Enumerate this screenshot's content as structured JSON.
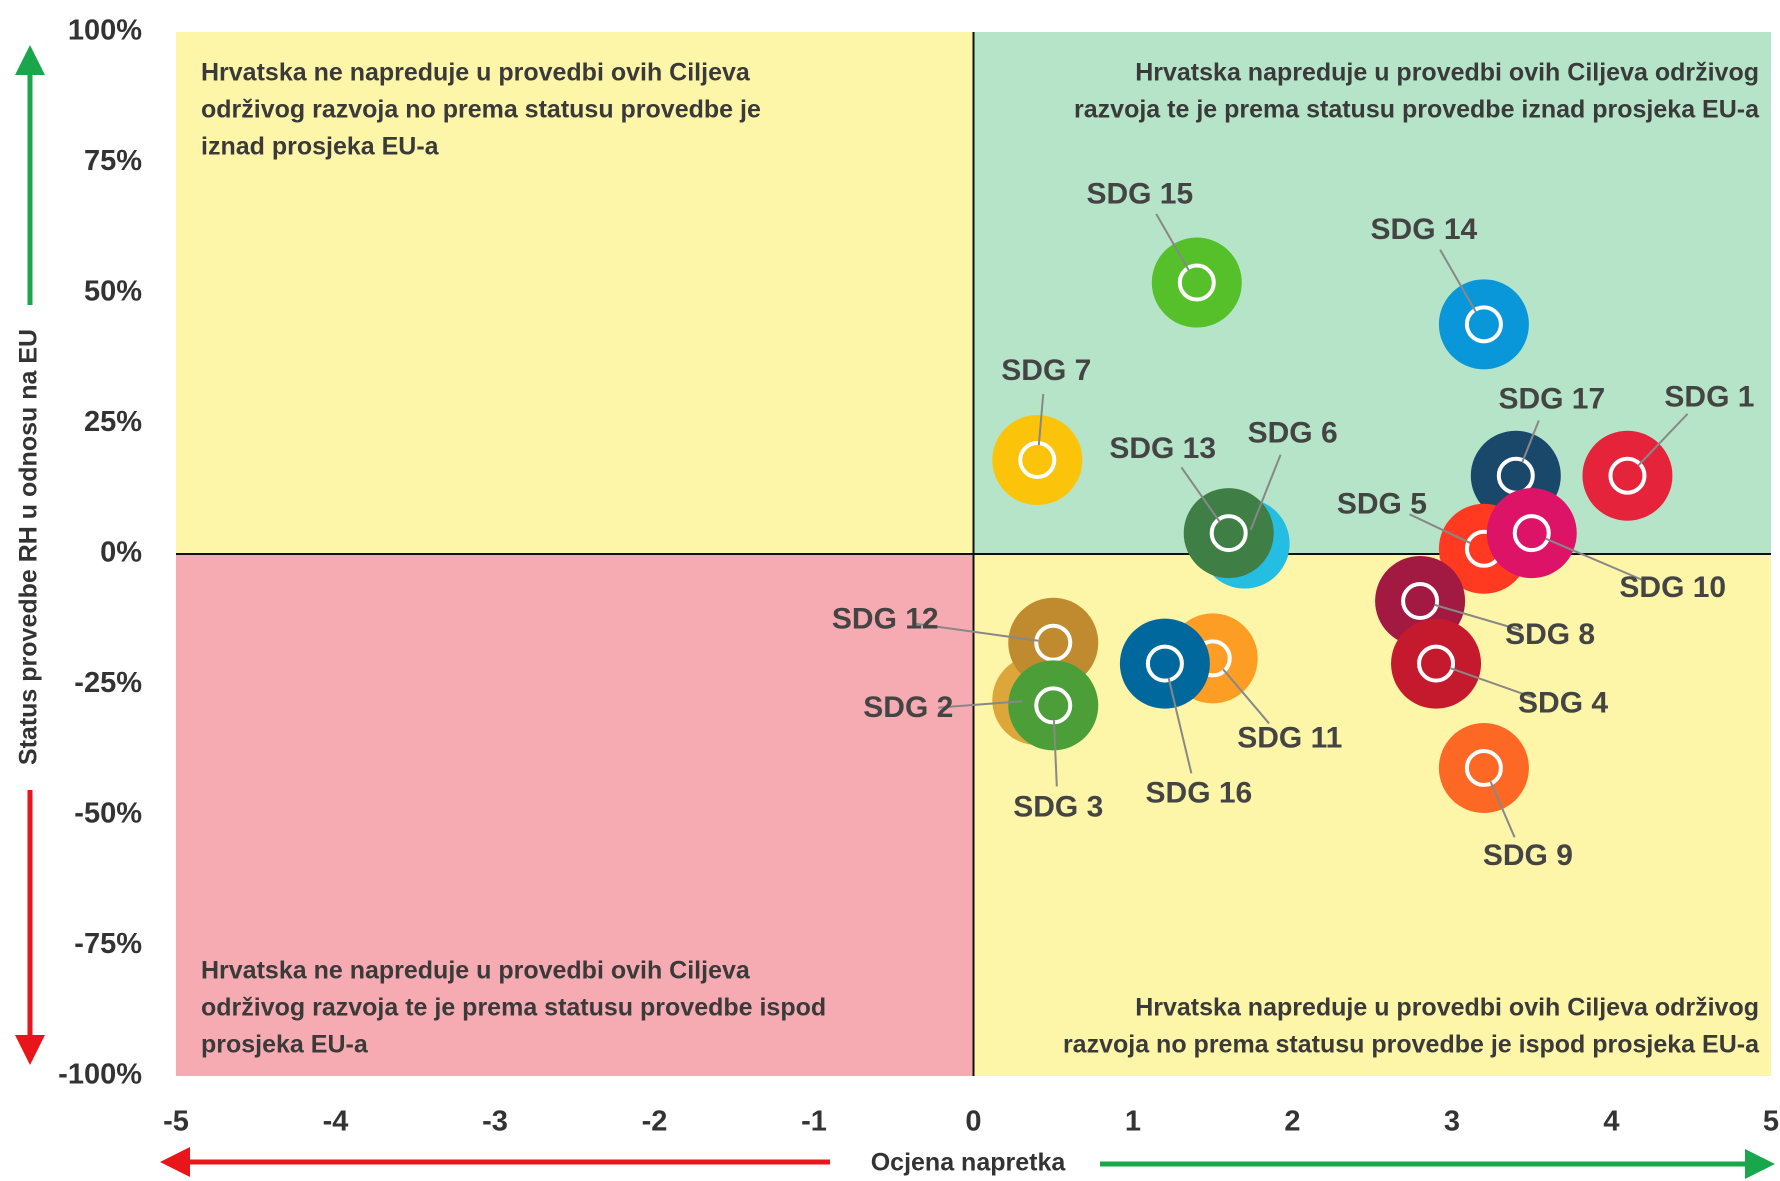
{
  "chart_data": {
    "type": "scatter",
    "xlabel": "Ocjena napretka",
    "ylabel": "Status provedbe RH u odnosu na EU",
    "xlim": [
      -5,
      5
    ],
    "xticks": [
      -5,
      -4,
      -3,
      -2,
      -1,
      0,
      1,
      2,
      3,
      4,
      5
    ],
    "ylim": [
      -100,
      100
    ],
    "yticks": [
      {
        "value": -100,
        "label": "-100%"
      },
      {
        "value": -75,
        "label": "-75%"
      },
      {
        "value": -50,
        "label": "-50%"
      },
      {
        "value": -25,
        "label": "-25%"
      },
      {
        "value": 0,
        "label": "0%"
      },
      {
        "value": 25,
        "label": "25%"
      },
      {
        "value": 50,
        "label": "50%"
      },
      {
        "value": 75,
        "label": "75%"
      },
      {
        "value": 100,
        "label": "100%"
      }
    ],
    "quadrants": [
      {
        "position": "top-left",
        "color": "#fdf5a8",
        "lines": [
          "Hrvatska ne napreduje u provedbi ovih Ciljeva",
          "održivog razvoja no prema statusu provedbe je",
          "iznad prosjeka EU-a"
        ]
      },
      {
        "position": "top-right",
        "color": "#b5e4c9",
        "lines": [
          "Hrvatska napreduje u provedbi ovih Ciljeva održivog",
          "razvoja te je prema statusu provedbe iznad prosjeka EU-a"
        ]
      },
      {
        "position": "bottom-left",
        "color": "#f5abb1",
        "lines": [
          "Hrvatska ne napreduje u provedbi ovih Ciljeva",
          "održivog razvoja te je prema statusu provedbe ispod",
          "prosjeka EU-a"
        ]
      },
      {
        "position": "bottom-right",
        "color": "#fdf5a8",
        "lines": [
          "Hrvatska napreduje u provedbi ovih Ciljeva održivog",
          "razvoja no prema statusu provedbe je ispod prosjeka EU-a"
        ]
      }
    ],
    "points": [
      {
        "name": "SDG 15",
        "x": 1.4,
        "y": 52,
        "color": "#56c02b"
      },
      {
        "name": "SDG 14",
        "x": 3.2,
        "y": 44,
        "color": "#0a97d9"
      },
      {
        "name": "SDG 7",
        "x": 0.4,
        "y": 18,
        "color": "#fcc30b"
      },
      {
        "name": "SDG 17",
        "x": 3.4,
        "y": 15,
        "color": "#19486a"
      },
      {
        "name": "SDG 1",
        "x": 4.1,
        "y": 15,
        "color": "#e5243b"
      },
      {
        "name": "SDG 6",
        "x": 1.7,
        "y": 2,
        "color": "#26bde2"
      },
      {
        "name": "SDG 13",
        "x": 1.6,
        "y": 4,
        "color": "#3f7e44"
      },
      {
        "name": "SDG 5",
        "x": 3.2,
        "y": 1,
        "color": "#ff3a21"
      },
      {
        "name": "SDG 10",
        "x": 3.5,
        "y": 4,
        "color": "#dd1367"
      },
      {
        "name": "SDG 8",
        "x": 2.8,
        "y": -9,
        "color": "#a21942"
      },
      {
        "name": "SDG 4",
        "x": 2.9,
        "y": -21,
        "color": "#c5192d"
      },
      {
        "name": "SDG 2",
        "x": 0.4,
        "y": -28,
        "color": "#dda63a"
      },
      {
        "name": "SDG 12",
        "x": 0.5,
        "y": -17,
        "color": "#bf8b2e"
      },
      {
        "name": "SDG 3",
        "x": 0.5,
        "y": -29,
        "color": "#4c9f38"
      },
      {
        "name": "SDG 11",
        "x": 1.5,
        "y": -20,
        "color": "#fd9d24"
      },
      {
        "name": "SDG 16",
        "x": 1.2,
        "y": -21,
        "color": "#00689d"
      },
      {
        "name": "SDG 9",
        "x": 3.2,
        "y": -41,
        "color": "#fd6925"
      }
    ]
  }
}
